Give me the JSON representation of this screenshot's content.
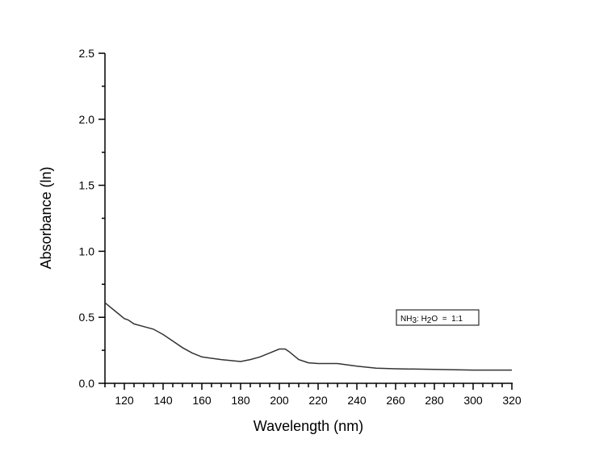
{
  "chart_data": {
    "type": "line",
    "title": "",
    "xlabel": "Wavelength (nm)",
    "ylabel": "Absorbance (ln)",
    "xlim": [
      110,
      320
    ],
    "ylim": [
      0,
      2.5
    ],
    "xticks": [
      120,
      140,
      160,
      180,
      200,
      220,
      240,
      260,
      280,
      300,
      320
    ],
    "yticks": [
      "0.0",
      "0.5",
      "1.0",
      "1.5",
      "2.0",
      "2.5"
    ],
    "grid": false,
    "annotation": {
      "parts": [
        "NH",
        "3",
        ": H",
        "2",
        "O  =  1:1"
      ],
      "text": "NH3: H2O = 1:1"
    },
    "series": [
      {
        "color": "#333333",
        "x": [
          110,
          115,
          120,
          122,
          125,
          130,
          135,
          140,
          145,
          150,
          155,
          160,
          170,
          180,
          185,
          190,
          195,
          200,
          203,
          205,
          210,
          215,
          220,
          230,
          240,
          250,
          260,
          280,
          300,
          320
        ],
        "y": [
          0.61,
          0.55,
          0.49,
          0.48,
          0.45,
          0.43,
          0.41,
          0.37,
          0.32,
          0.27,
          0.23,
          0.2,
          0.18,
          0.165,
          0.18,
          0.2,
          0.23,
          0.26,
          0.26,
          0.24,
          0.18,
          0.155,
          0.15,
          0.15,
          0.13,
          0.115,
          0.11,
          0.105,
          0.1,
          0.1
        ]
      }
    ]
  }
}
